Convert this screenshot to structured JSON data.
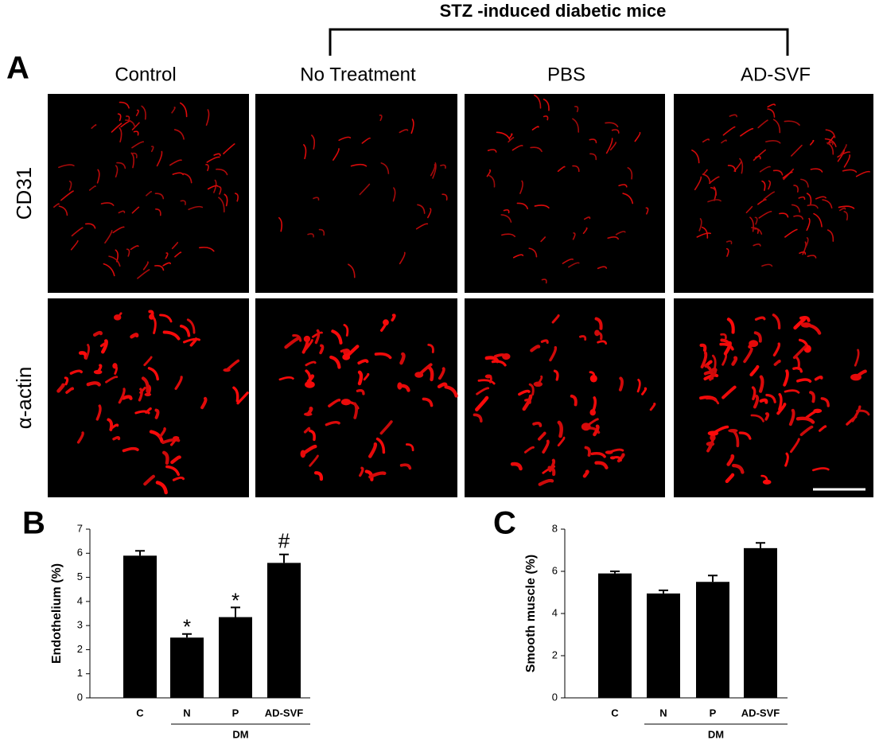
{
  "panel_a": {
    "label": "A",
    "group_title": "STZ -induced diabetic mice",
    "columns": [
      "Control",
      "No Treatment",
      "PBS",
      "AD-SVF"
    ],
    "rows": [
      "CD31",
      "α-actin"
    ]
  },
  "chart_data": [
    {
      "type": "bar",
      "panel_label": "B",
      "ylabel": "Endothelium (%)",
      "categories": [
        "C",
        "N",
        "P",
        "AD-SVF"
      ],
      "group_label": "DM",
      "values": [
        5.9,
        2.5,
        3.35,
        5.6
      ],
      "errors": [
        0.2,
        0.15,
        0.4,
        0.35
      ],
      "annotations": [
        null,
        "*",
        "*",
        "#"
      ],
      "ylim": [
        0,
        7
      ],
      "yticks": [
        0,
        1,
        2,
        3,
        4,
        5,
        6,
        7
      ],
      "color": "#000000"
    },
    {
      "type": "bar",
      "panel_label": "C",
      "ylabel": "Smooth muscle (%)",
      "categories": [
        "C",
        "N",
        "P",
        "AD-SVF"
      ],
      "group_label": "DM",
      "values": [
        5.9,
        4.95,
        5.5,
        7.1
      ],
      "errors": [
        0.1,
        0.15,
        0.3,
        0.25
      ],
      "ylim": [
        0,
        8
      ],
      "yticks": [
        0,
        2,
        4,
        6,
        8
      ],
      "color": "#000000"
    }
  ]
}
